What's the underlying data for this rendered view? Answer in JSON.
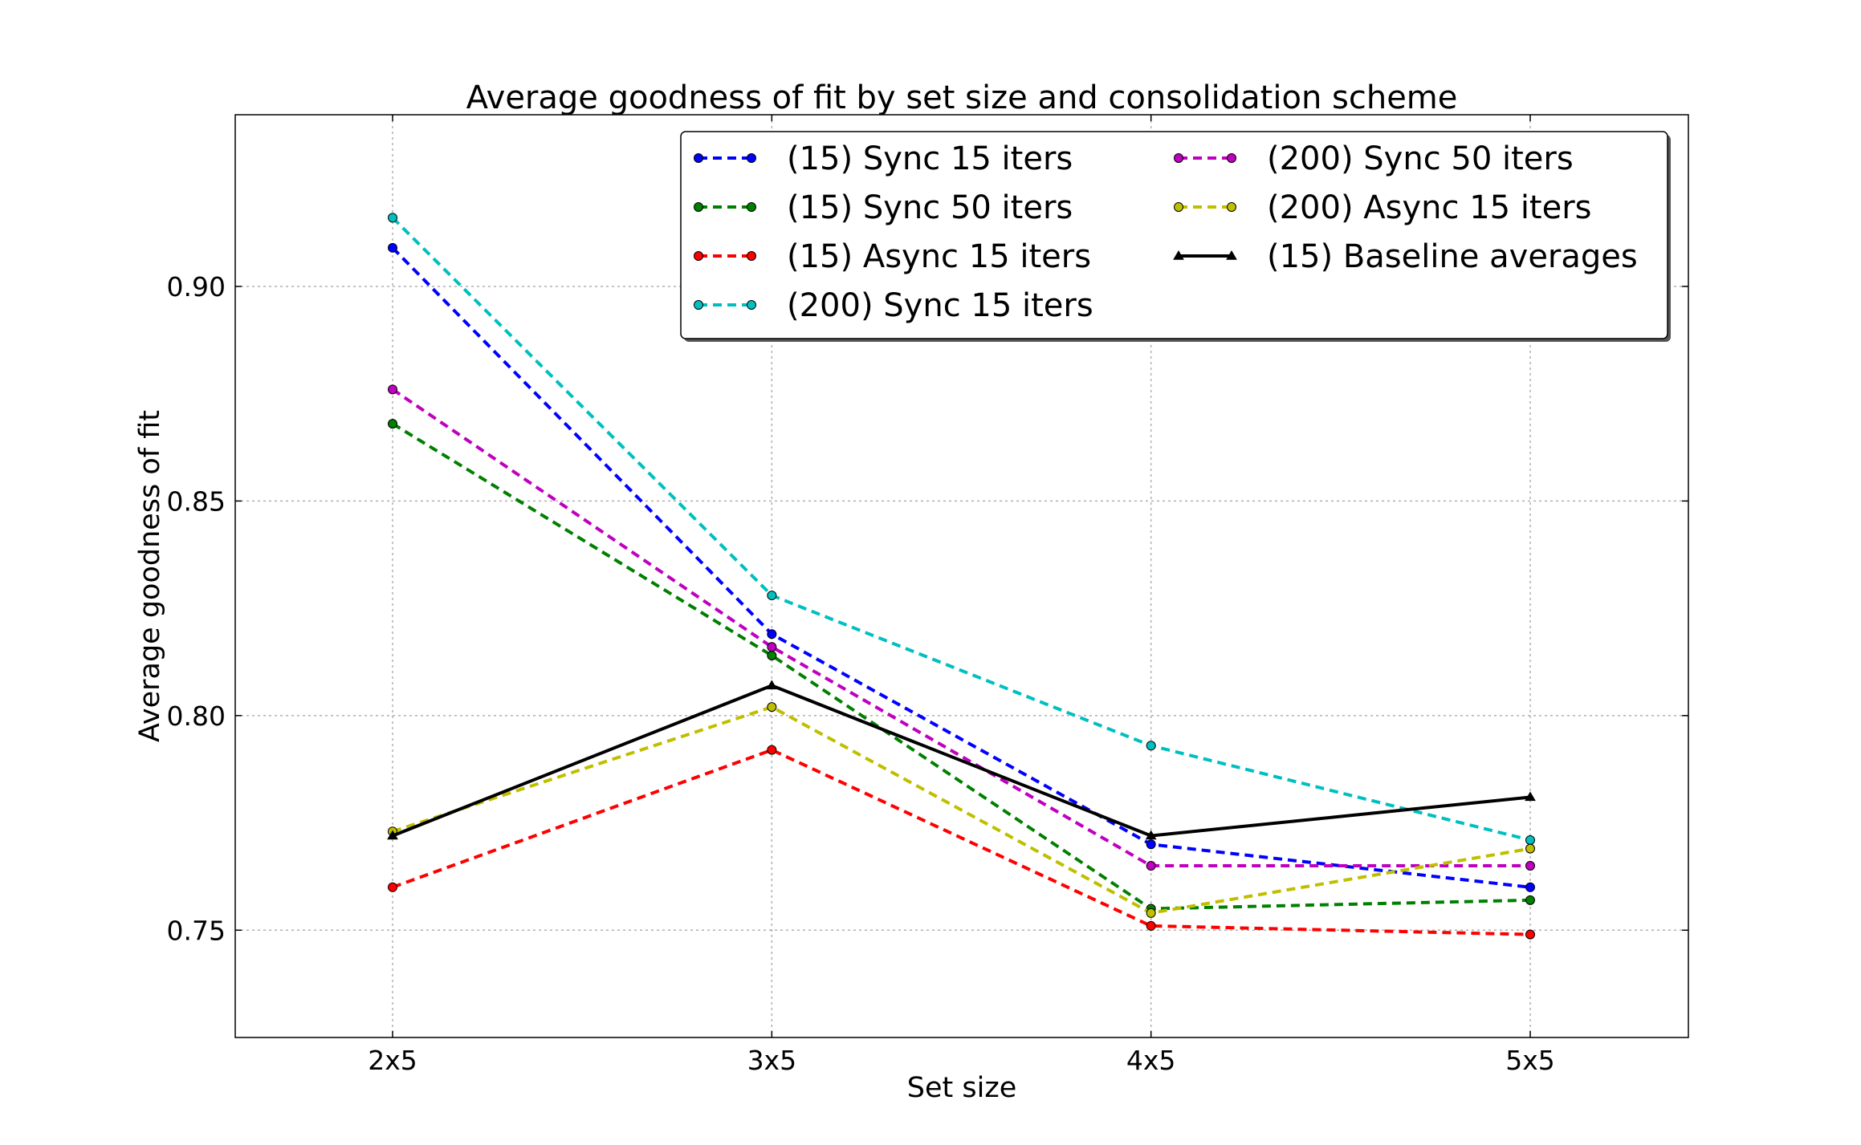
{
  "chart_data": {
    "type": "line",
    "title": "Average goodness of fit by set size and consolidation scheme",
    "xlabel": "Set size",
    "ylabel": "Average goodness of fit",
    "categories": [
      "2x5",
      "3x5",
      "4x5",
      "5x5"
    ],
    "ylim": [
      0.725,
      0.94
    ],
    "yticks": [
      "0.75",
      "0.80",
      "0.85",
      "0.90"
    ],
    "grid": true,
    "legend_position": "top-right",
    "series": [
      {
        "name": "(15) Sync 15 iters",
        "color": "#0000ff",
        "style": "dashed",
        "marker": "circle",
        "values": [
          0.909,
          0.819,
          0.77,
          0.76
        ]
      },
      {
        "name": "(15) Sync 50 iters",
        "color": "#007f00",
        "style": "dashed",
        "marker": "circle",
        "values": [
          0.868,
          0.814,
          0.755,
          0.757
        ]
      },
      {
        "name": "(15) Async 15 iters",
        "color": "#ff0000",
        "style": "dashed",
        "marker": "circle",
        "values": [
          0.76,
          0.792,
          0.751,
          0.749
        ]
      },
      {
        "name": "(200) Sync 15 iters",
        "color": "#00bfbf",
        "style": "dashed",
        "marker": "circle",
        "values": [
          0.916,
          0.828,
          0.793,
          0.771
        ]
      },
      {
        "name": "(200) Sync 50 iters",
        "color": "#bf00bf",
        "style": "dashed",
        "marker": "circle",
        "values": [
          0.876,
          0.816,
          0.765,
          0.765
        ]
      },
      {
        "name": "(200) Async 15 iters",
        "color": "#bfbf00",
        "style": "dashed",
        "marker": "circle",
        "values": [
          0.773,
          0.802,
          0.754,
          0.769
        ]
      },
      {
        "name": "(15) Baseline averages",
        "color": "#000000",
        "style": "solid",
        "marker": "triangle",
        "values": [
          0.772,
          0.807,
          0.772,
          0.781
        ]
      }
    ]
  }
}
